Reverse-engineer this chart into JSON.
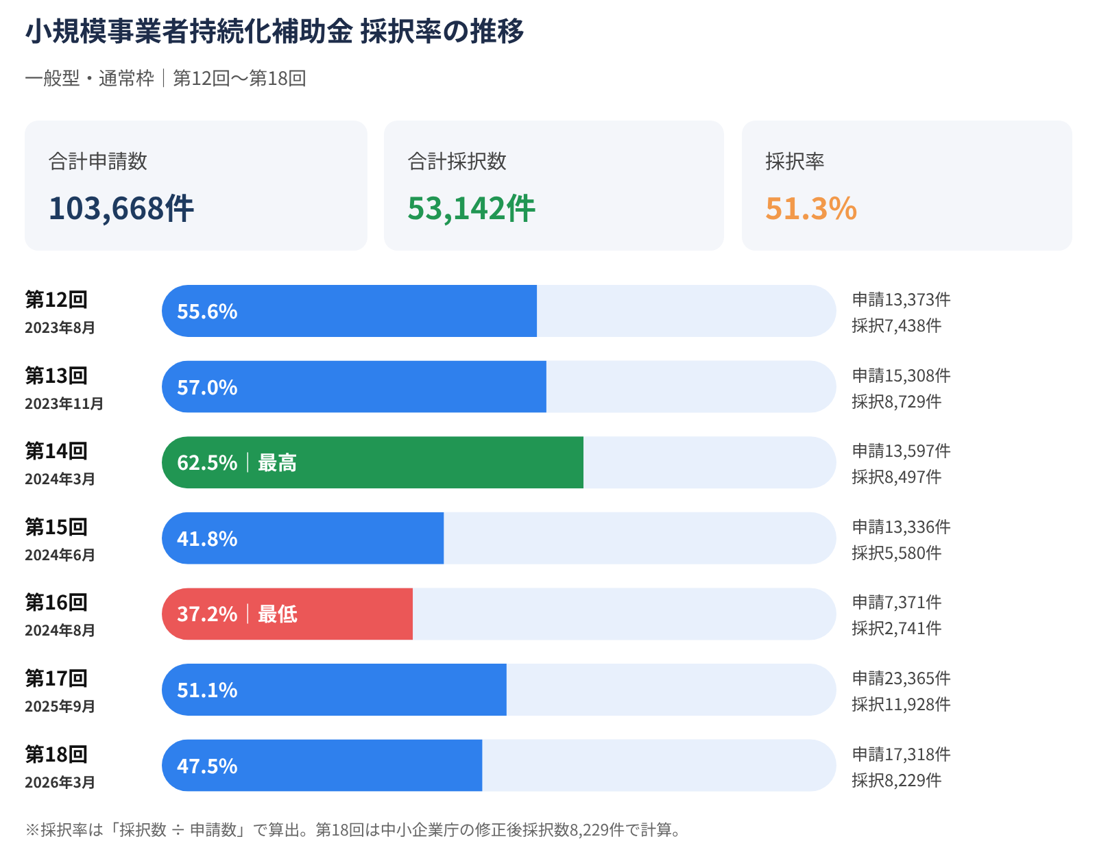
{
  "chart_data": [
    {
      "type": "other",
      "annotations": [
        "合計申請数",
        "103,668件",
        "合計採択数",
        "53,142件",
        "採択率",
        "51.3%"
      ]
    },
    {
      "type": "bar",
      "orientation": "horizontal",
      "title": "小規模事業者持続化補助金 採択率の推移",
      "subtitle": "一般型・通常枠｜第12回〜第18回",
      "categories": [
        "第12回\n2023年8月",
        "第13回\n2023年11月",
        "第14回\n2024年3月",
        "第15回\n2024年6月",
        "第16回\n2024年8月",
        "第17回\n2025年9月",
        "第18回\n2026年3月"
      ],
      "values": [
        55.6,
        57.0,
        62.5,
        41.8,
        37.2,
        51.1,
        47.5
      ],
      "value_labels": [
        "55.6%",
        "57.0%",
        "62.5%｜最高",
        "41.8%",
        "37.2%｜最低",
        "51.1%",
        "47.5%"
      ],
      "colors": [
        "#2f80ed",
        "#2f80ed",
        "#219653",
        "#2f80ed",
        "#eb5757",
        "#2f80ed",
        "#2f80ed"
      ],
      "xlim": [
        0,
        100
      ],
      "tick_labels": "y",
      "annotations": [
        "申請13,373件",
        "採択7,438件",
        "申請15,308件",
        "採択8,729件",
        "申請13,597件",
        "採択8,497件",
        "申請13,336件",
        "採択5,580件",
        "申請7,371件",
        "採択2,741件",
        "申請23,365件",
        "採択11,928件",
        "申請17,318件",
        "採択8,229件",
        "※採択率は「採択数 ÷ 申請数」で算出。第18回は中小企業庁の修正後採択数8,229件で計算。"
      ]
    }
  ]
}
